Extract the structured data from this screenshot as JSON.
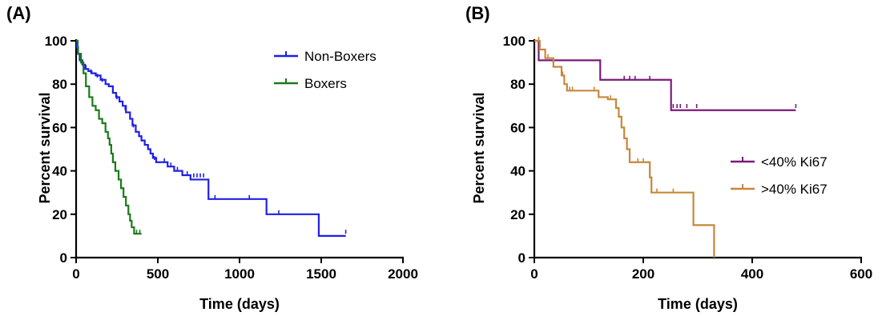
{
  "chart_data": [
    {
      "panel_label": "(A)",
      "type": "line",
      "step": true,
      "xlabel": "Time (days)",
      "ylabel": "Percent survival",
      "xlim": [
        0,
        2000
      ],
      "ylim": [
        0,
        100
      ],
      "xticks": [
        0,
        500,
        1000,
        1500,
        2000
      ],
      "yticks": [
        0,
        20,
        40,
        60,
        80,
        100
      ],
      "grid": false,
      "legend_position": "top-right",
      "series": [
        {
          "name": "Non-Boxers",
          "color": "#1f1fe6",
          "points": [
            [
              0,
              100
            ],
            [
              5,
              97
            ],
            [
              12,
              94
            ],
            [
              22,
              91
            ],
            [
              38,
              89
            ],
            [
              55,
              87
            ],
            [
              75,
              86
            ],
            [
              95,
              85
            ],
            [
              120,
              84
            ],
            [
              150,
              82
            ],
            [
              180,
              80
            ],
            [
              200,
              79
            ],
            [
              225,
              76
            ],
            [
              245,
              74
            ],
            [
              265,
              72
            ],
            [
              285,
              70
            ],
            [
              305,
              67
            ],
            [
              330,
              64
            ],
            [
              345,
              61
            ],
            [
              365,
              58
            ],
            [
              385,
              56
            ],
            [
              400,
              54
            ],
            [
              420,
              52
            ],
            [
              440,
              50
            ],
            [
              455,
              48
            ],
            [
              470,
              46
            ],
            [
              490,
              44
            ],
            [
              530,
              44
            ],
            [
              560,
              42
            ],
            [
              600,
              40
            ],
            [
              650,
              38
            ],
            [
              700,
              36
            ],
            [
              800,
              36
            ],
            [
              810,
              27
            ],
            [
              1160,
              27
            ],
            [
              1165,
              20
            ],
            [
              1480,
              20
            ],
            [
              1485,
              10
            ],
            [
              1650,
              10
            ]
          ],
          "censored": [
            [
              30,
              90
            ],
            [
              60,
              87
            ],
            [
              90,
              85
            ],
            [
              130,
              83
            ],
            [
              160,
              81
            ],
            [
              250,
              73
            ],
            [
              300,
              68
            ],
            [
              350,
              60
            ],
            [
              420,
              52
            ],
            [
              480,
              45
            ],
            [
              540,
              44
            ],
            [
              580,
              42
            ],
            [
              620,
              40
            ],
            [
              680,
              38
            ],
            [
              720,
              37
            ],
            [
              740,
              37
            ],
            [
              760,
              37
            ],
            [
              780,
              37
            ],
            [
              850,
              27
            ],
            [
              1060,
              27
            ],
            [
              1240,
              20
            ],
            [
              1650,
              11
            ]
          ]
        },
        {
          "name": "Boxers",
          "color": "#1a7a1a",
          "points": [
            [
              0,
              100
            ],
            [
              10,
              94
            ],
            [
              30,
              90
            ],
            [
              45,
              85
            ],
            [
              60,
              79
            ],
            [
              80,
              74
            ],
            [
              100,
              70
            ],
            [
              120,
              68
            ],
            [
              140,
              64
            ],
            [
              160,
              62
            ],
            [
              180,
              58
            ],
            [
              195,
              55
            ],
            [
              205,
              52
            ],
            [
              215,
              48
            ],
            [
              225,
              44
            ],
            [
              240,
              40
            ],
            [
              260,
              36
            ],
            [
              275,
              32
            ],
            [
              290,
              28
            ],
            [
              305,
              24
            ],
            [
              320,
              20
            ],
            [
              330,
              17
            ],
            [
              340,
              14
            ],
            [
              355,
              11
            ],
            [
              400,
              11
            ]
          ],
          "censored": [
            [
              370,
              11
            ],
            [
              390,
              11
            ]
          ]
        }
      ]
    },
    {
      "panel_label": "(B)",
      "type": "line",
      "step": true,
      "xlabel": "Time (days)",
      "ylabel": "Percent survival",
      "xlim": [
        0,
        600
      ],
      "ylim": [
        0,
        100
      ],
      "xticks": [
        0,
        200,
        400,
        600
      ],
      "yticks": [
        0,
        20,
        40,
        60,
        80,
        100
      ],
      "grid": false,
      "legend_position": "middle-right",
      "series": [
        {
          "name": "<40% Ki67",
          "color": "#7a1a7a",
          "points": [
            [
              0,
              100
            ],
            [
              8,
              91
            ],
            [
              120,
              91
            ],
            [
              121,
              82
            ],
            [
              250,
              82
            ],
            [
              251,
              68
            ],
            [
              480,
              68
            ]
          ],
          "censored": [
            [
              165,
              82
            ],
            [
              175,
              82
            ],
            [
              185,
              82
            ],
            [
              212,
              82
            ],
            [
              255,
              69
            ],
            [
              262,
              69
            ],
            [
              268,
              69
            ],
            [
              280,
              69
            ],
            [
              298,
              69
            ],
            [
              480,
              69
            ]
          ]
        },
        {
          "name": ">40% Ki67",
          "color": "#c8873a",
          "points": [
            [
              0,
              100
            ],
            [
              10,
              96
            ],
            [
              20,
              92
            ],
            [
              35,
              88
            ],
            [
              50,
              84
            ],
            [
              55,
              80
            ],
            [
              60,
              77
            ],
            [
              100,
              77
            ],
            [
              118,
              74
            ],
            [
              135,
              73
            ],
            [
              150,
              69
            ],
            [
              155,
              65
            ],
            [
              160,
              60
            ],
            [
              165,
              55
            ],
            [
              170,
              50
            ],
            [
              175,
              44
            ],
            [
              210,
              44
            ],
            [
              212,
              37
            ],
            [
              215,
              30
            ],
            [
              290,
              30
            ],
            [
              292,
              15
            ],
            [
              328,
              15
            ],
            [
              330,
              0
            ]
          ],
          "censored": [
            [
              8,
              100
            ],
            [
              25,
              92
            ],
            [
              52,
              84
            ],
            [
              65,
              77
            ],
            [
              70,
              77
            ],
            [
              110,
              77
            ],
            [
              140,
              73
            ],
            [
              190,
              44
            ],
            [
              200,
              44
            ],
            [
              225,
              30
            ],
            [
              255,
              30
            ]
          ]
        }
      ]
    }
  ]
}
